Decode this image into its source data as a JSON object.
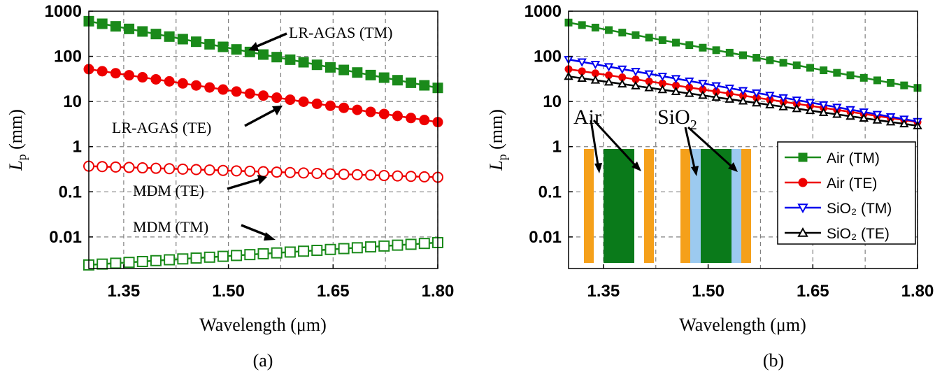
{
  "chart_data": [
    {
      "type": "line",
      "panel_label": "(a)",
      "xlabel": "Wavelength (μm)",
      "ylabel": "L",
      "ylabel_sub": "p",
      "ylabel_unit": " (mm)",
      "xlim": [
        1.3,
        1.8
      ],
      "ylim": [
        0.002,
        1000
      ],
      "yscale": "log",
      "x_ticks": [
        1.35,
        1.5,
        1.65,
        1.8
      ],
      "x_tick_labels": [
        "1.35",
        "1.50",
        "1.65",
        "1.80"
      ],
      "y_ticks": [
        0.01,
        0.1,
        1,
        10,
        100,
        1000
      ],
      "y_tick_labels": [
        "0.01",
        "0.1",
        "1",
        "10",
        "100",
        "1000"
      ],
      "grid": true,
      "series": [
        {
          "name": "LR-AGAS (TM)",
          "color": "#1a8a1a",
          "marker": "square-filled",
          "start": 600,
          "end": 20
        },
        {
          "name": "LR-AGAS (TE)",
          "color": "#ee0000",
          "marker": "circle-filled",
          "start": 52,
          "end": 3.5
        },
        {
          "name": "MDM (TE)",
          "color": "#ee0000",
          "marker": "circle-open",
          "start": 0.37,
          "end": 0.21
        },
        {
          "name": "MDM (TM)",
          "color": "#1a8a1a",
          "marker": "square-open",
          "start": 0.0024,
          "end": 0.0075
        }
      ],
      "annotations": [
        {
          "text": "LR-AGAS (TM)",
          "target_series": 0
        },
        {
          "text": "LR-AGAS (TE)",
          "target_series": 1
        },
        {
          "text": "MDM (TE)",
          "target_series": 2
        },
        {
          "text": "MDM (TM)",
          "target_series": 3
        }
      ]
    },
    {
      "type": "line",
      "panel_label": "(b)",
      "xlabel": "Wavelength (μm)",
      "ylabel": "L",
      "ylabel_sub": "p",
      "ylabel_unit": " (mm)",
      "xlim": [
        1.3,
        1.8
      ],
      "ylim": [
        0.002,
        1000
      ],
      "yscale": "log",
      "x_ticks": [
        1.35,
        1.5,
        1.65,
        1.8
      ],
      "x_tick_labels": [
        "1.35",
        "1.50",
        "1.65",
        "1.80"
      ],
      "y_ticks": [
        0.01,
        0.1,
        1,
        10,
        100,
        1000
      ],
      "y_tick_labels": [
        "0.01",
        "0.1",
        "1",
        "10",
        "100",
        "1000"
      ],
      "grid": true,
      "legend_position": "lower-right",
      "series": [
        {
          "name": "Air (TM)",
          "color": "#1a8a1a",
          "marker": "square-filled",
          "start": 560,
          "end": 20
        },
        {
          "name": "Air (TE)",
          "color": "#ee0000",
          "marker": "circle-filled",
          "start": 52,
          "end": 3.5
        },
        {
          "name": "SiO₂ (TM)",
          "color": "#0000ee",
          "marker": "triangle-down-open",
          "start": 85,
          "end": 3.6
        },
        {
          "name": "SiO₂ (TE)",
          "color": "#000000",
          "marker": "triangle-up-open",
          "start": 36,
          "end": 2.9
        }
      ],
      "inset_labels": {
        "air": "Air",
        "sio2": "SiO",
        "sio2_sub": "2"
      },
      "inset_colors": {
        "metal": "#f5a01a",
        "core": "#0a7a1a",
        "oxide": "#9ccaf0"
      }
    }
  ]
}
